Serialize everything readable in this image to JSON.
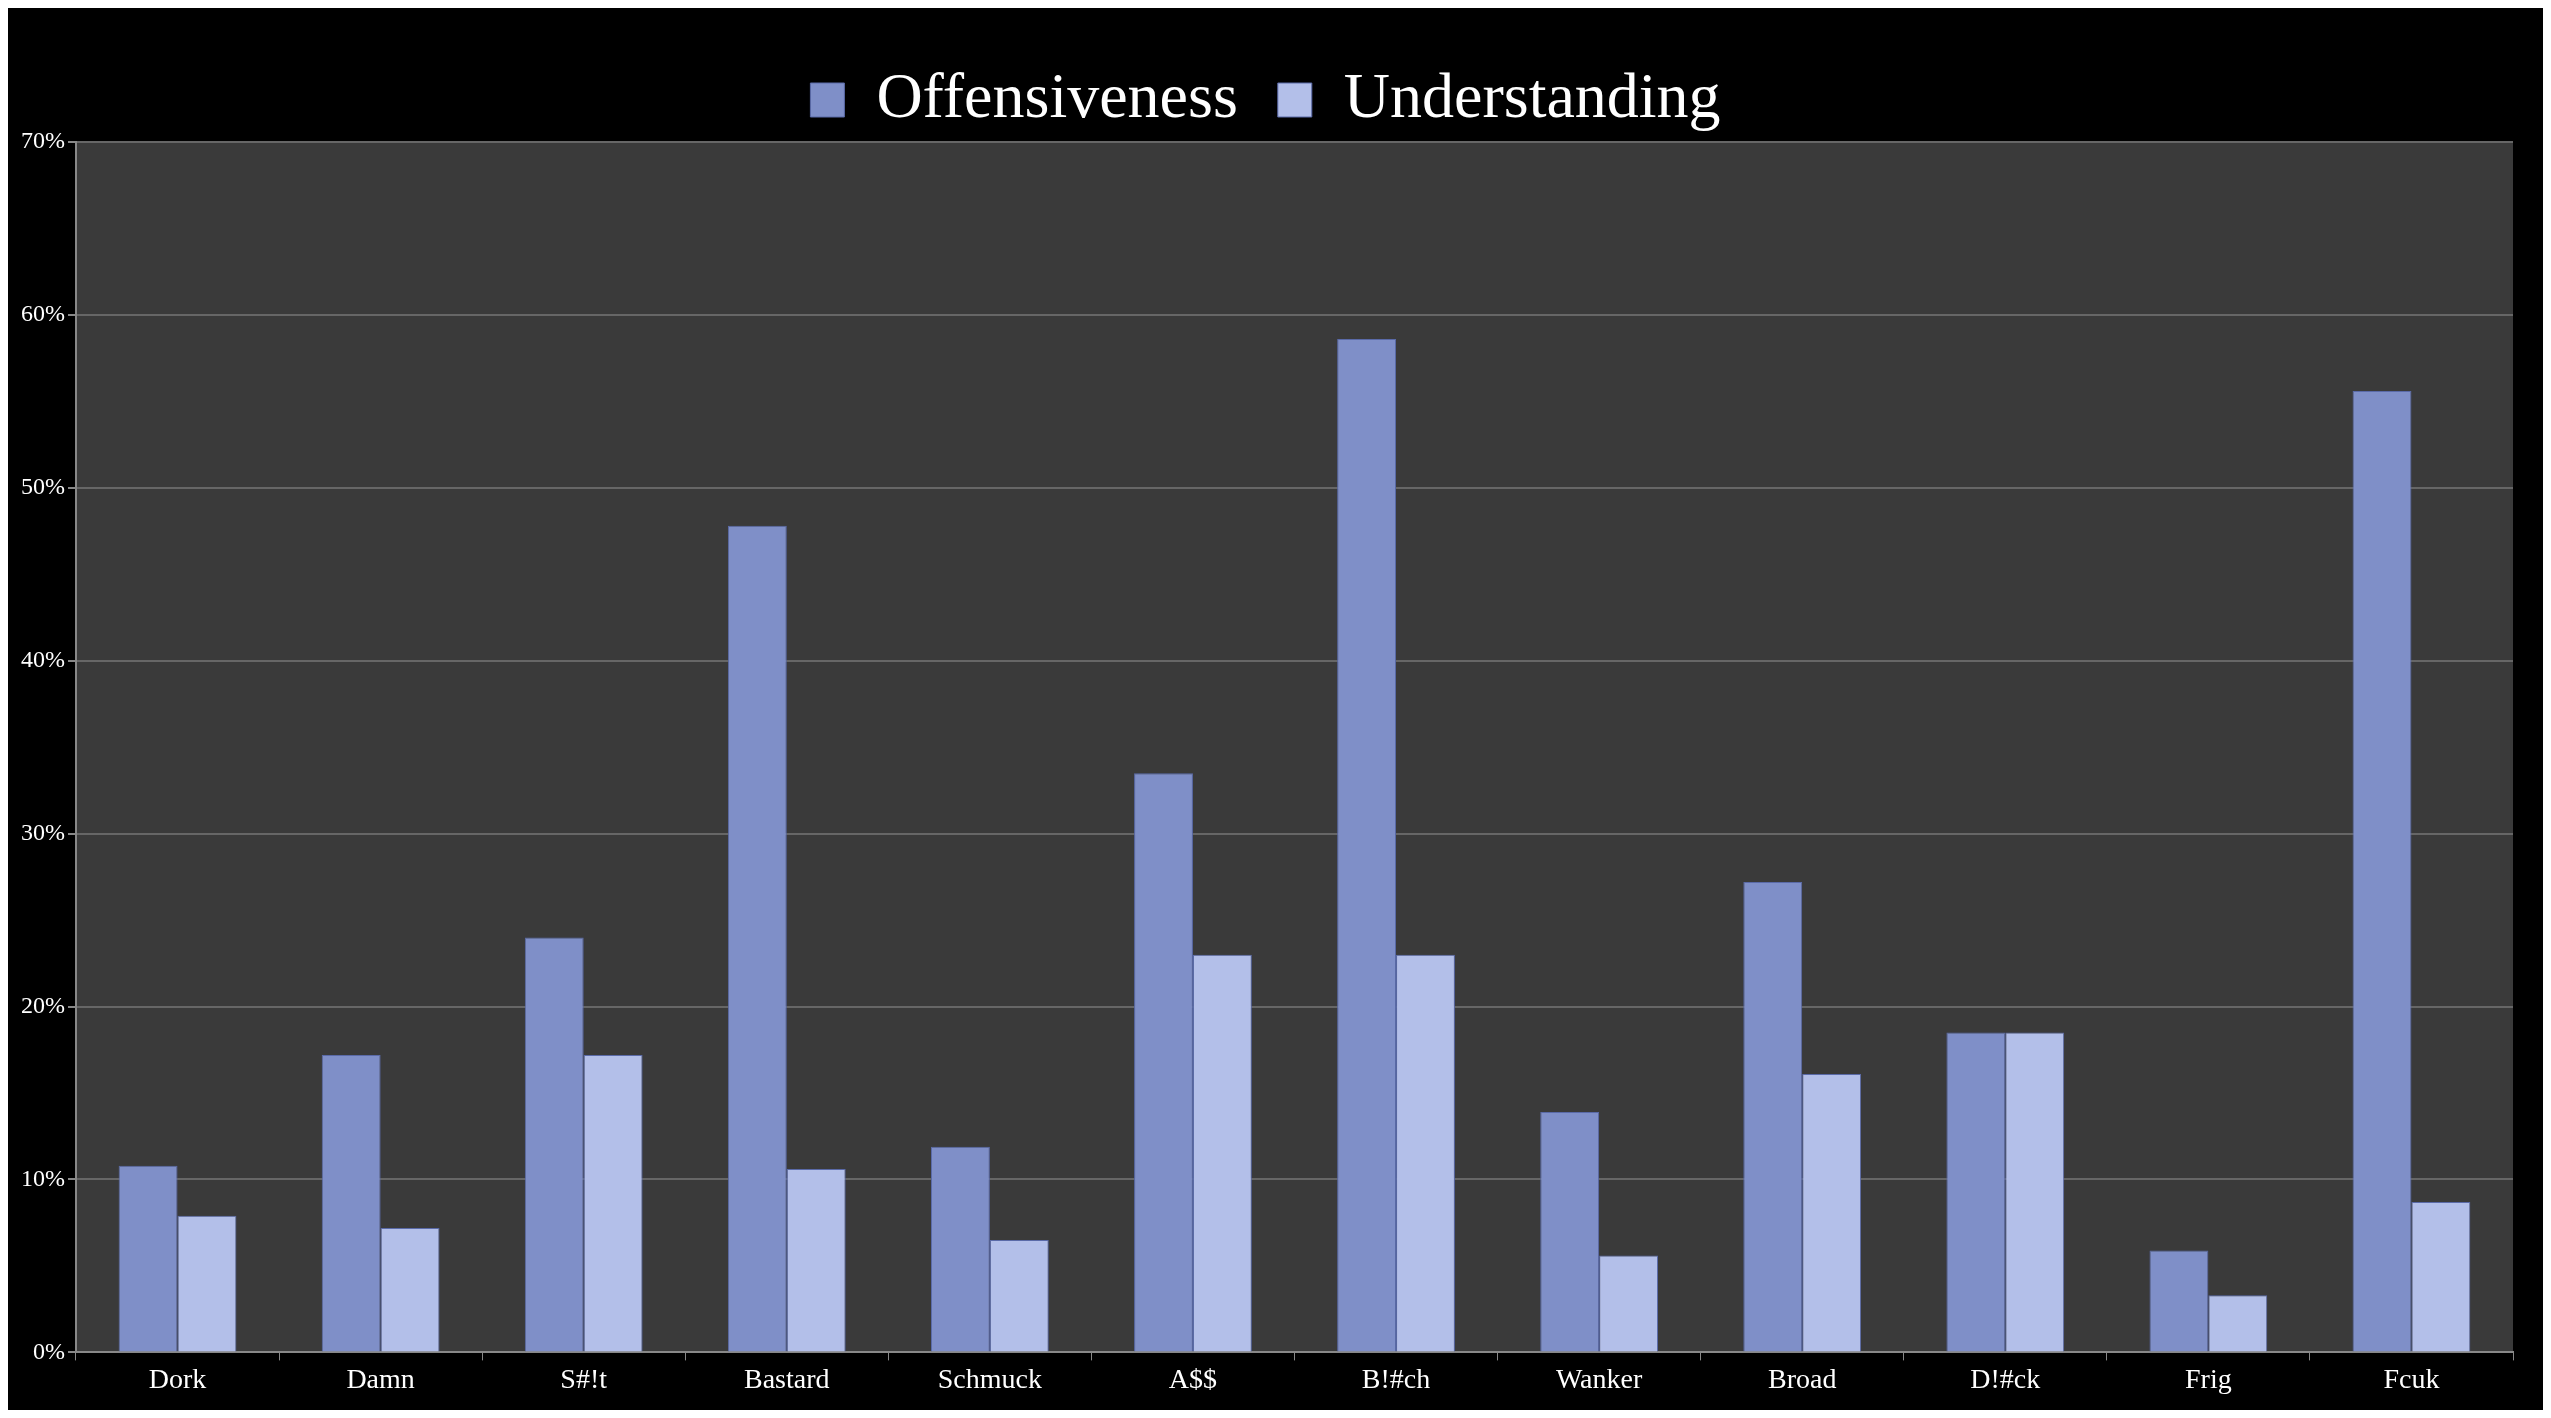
{
  "chart_data": {
    "type": "bar",
    "categories": [
      "Dork",
      "Damn",
      "S#!t",
      "Bastard",
      "Schmuck",
      "A$$",
      "B!#ch",
      "Wanker",
      "Broad",
      "D!#ck",
      "Frig",
      "Fcuk"
    ],
    "series": [
      {
        "name": "Offensiveness",
        "color": "#7f8fc8",
        "values": [
          10.8,
          17.2,
          24.0,
          47.8,
          11.9,
          33.5,
          58.6,
          13.9,
          27.2,
          18.5,
          5.9,
          55.6
        ]
      },
      {
        "name": "Understanding",
        "color": "#b3bfe9",
        "values": [
          7.9,
          7.2,
          17.2,
          10.6,
          6.5,
          23.0,
          23.0,
          5.6,
          16.1,
          18.5,
          3.3,
          8.7
        ]
      }
    ],
    "ylim": [
      0,
      70
    ],
    "yticks": [
      {
        "value": 0,
        "label": "0%"
      },
      {
        "value": 10,
        "label": "10%"
      },
      {
        "value": 20,
        "label": "20%"
      },
      {
        "value": 30,
        "label": "30%"
      },
      {
        "value": 40,
        "label": "40%"
      },
      {
        "value": 50,
        "label": "50%"
      },
      {
        "value": 60,
        "label": "60%"
      },
      {
        "value": 70,
        "label": "70%"
      }
    ],
    "grid": "y",
    "legend": "top"
  }
}
